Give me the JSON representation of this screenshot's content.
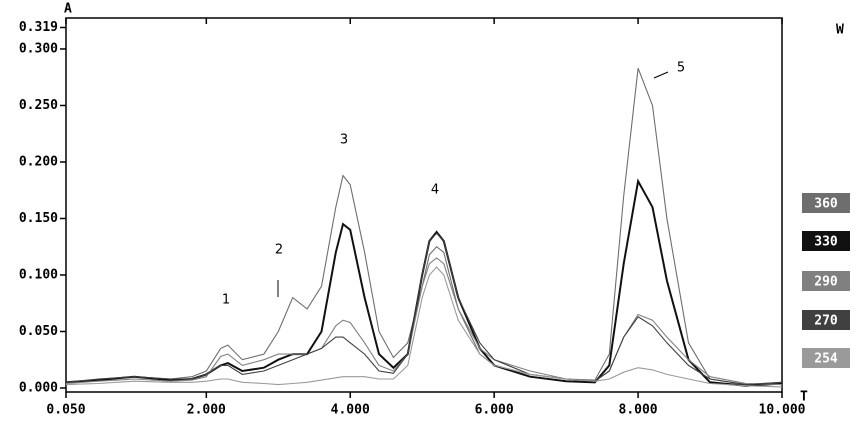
{
  "chart_data": {
    "type": "line",
    "y_label": "A",
    "x_label": "T",
    "legend_title": "W",
    "annotations": [
      "1",
      "2",
      "3",
      "4",
      "5"
    ],
    "x": [
      0.05,
      0.5,
      1.0,
      1.5,
      1.8,
      2.0,
      2.2,
      2.3,
      2.5,
      2.8,
      3.0,
      3.2,
      3.4,
      3.6,
      3.8,
      3.9,
      4.0,
      4.2,
      4.4,
      4.6,
      4.8,
      5.0,
      5.1,
      5.2,
      5.3,
      5.5,
      5.8,
      6.0,
      6.5,
      7.0,
      7.4,
      7.6,
      7.8,
      8.0,
      8.2,
      8.4,
      8.7,
      9.0,
      9.5,
      10.0
    ],
    "series": [
      {
        "name": "360",
        "color": "#6e6e6e",
        "values": [
          0.005,
          0.007,
          0.01,
          0.008,
          0.01,
          0.015,
          0.035,
          0.038,
          0.025,
          0.03,
          0.05,
          0.08,
          0.07,
          0.09,
          0.16,
          0.188,
          0.18,
          0.12,
          0.05,
          0.027,
          0.04,
          0.09,
          0.118,
          0.125,
          0.12,
          0.07,
          0.03,
          0.02,
          0.012,
          0.008,
          0.007,
          0.03,
          0.17,
          0.283,
          0.25,
          0.15,
          0.04,
          0.008,
          0.003,
          0.005
        ]
      },
      {
        "name": "330",
        "color": "#111111",
        "values": [
          0.005,
          0.007,
          0.01,
          0.007,
          0.008,
          0.012,
          0.02,
          0.022,
          0.015,
          0.018,
          0.025,
          0.03,
          0.03,
          0.05,
          0.12,
          0.145,
          0.14,
          0.08,
          0.03,
          0.018,
          0.03,
          0.1,
          0.13,
          0.138,
          0.13,
          0.08,
          0.035,
          0.02,
          0.01,
          0.006,
          0.005,
          0.02,
          0.11,
          0.183,
          0.16,
          0.095,
          0.025,
          0.005,
          0.002,
          0.004
        ]
      },
      {
        "name": "290",
        "color": "#808080",
        "values": [
          0.004,
          0.006,
          0.008,
          0.006,
          0.007,
          0.01,
          0.028,
          0.03,
          0.02,
          0.025,
          0.03,
          0.03,
          0.03,
          0.035,
          0.055,
          0.06,
          0.058,
          0.04,
          0.02,
          0.015,
          0.03,
          0.09,
          0.11,
          0.115,
          0.11,
          0.07,
          0.035,
          0.025,
          0.015,
          0.008,
          0.006,
          0.015,
          0.045,
          0.065,
          0.06,
          0.045,
          0.025,
          0.01,
          0.004,
          0.003
        ]
      },
      {
        "name": "270",
        "color": "#404040",
        "values": [
          0.005,
          0.008,
          0.01,
          0.008,
          0.008,
          0.012,
          0.02,
          0.02,
          0.012,
          0.015,
          0.02,
          0.025,
          0.03,
          0.035,
          0.045,
          0.045,
          0.04,
          0.03,
          0.015,
          0.013,
          0.03,
          0.1,
          0.13,
          0.137,
          0.13,
          0.08,
          0.04,
          0.025,
          0.012,
          0.008,
          0.006,
          0.015,
          0.045,
          0.063,
          0.055,
          0.04,
          0.02,
          0.008,
          0.003,
          0.005
        ]
      },
      {
        "name": "254",
        "color": "#9a9a9a",
        "values": [
          0.003,
          0.004,
          0.006,
          0.005,
          0.005,
          0.006,
          0.008,
          0.008,
          0.005,
          0.004,
          0.003,
          0.004,
          0.005,
          0.007,
          0.009,
          0.01,
          0.01,
          0.01,
          0.008,
          0.008,
          0.02,
          0.08,
          0.1,
          0.107,
          0.1,
          0.06,
          0.03,
          0.02,
          0.012,
          0.008,
          0.006,
          0.008,
          0.014,
          0.018,
          0.016,
          0.012,
          0.008,
          0.004,
          0.002,
          0.001
        ]
      }
    ],
    "xlim": [
      0.05,
      10.0
    ],
    "ylim": [
      0,
      0.319
    ],
    "xticks": [
      {
        "value": 0.05,
        "label": "0.050"
      },
      {
        "value": 2,
        "label": "2.000"
      },
      {
        "value": 4,
        "label": "4.000"
      },
      {
        "value": 6,
        "label": "6.000"
      },
      {
        "value": 8,
        "label": "8.000"
      },
      {
        "value": 10,
        "label": "10.000"
      }
    ],
    "yticks": [
      {
        "value": 0,
        "label": "0.000"
      },
      {
        "value": 0.05,
        "label": "0.050"
      },
      {
        "value": 0.1,
        "label": "0.100"
      },
      {
        "value": 0.15,
        "label": "0.150"
      },
      {
        "value": 0.2,
        "label": "0.200"
      },
      {
        "value": 0.25,
        "label": "0.250"
      },
      {
        "value": 0.3,
        "label": "0.300"
      },
      {
        "value": 0.319,
        "label": "0.319"
      }
    ]
  }
}
